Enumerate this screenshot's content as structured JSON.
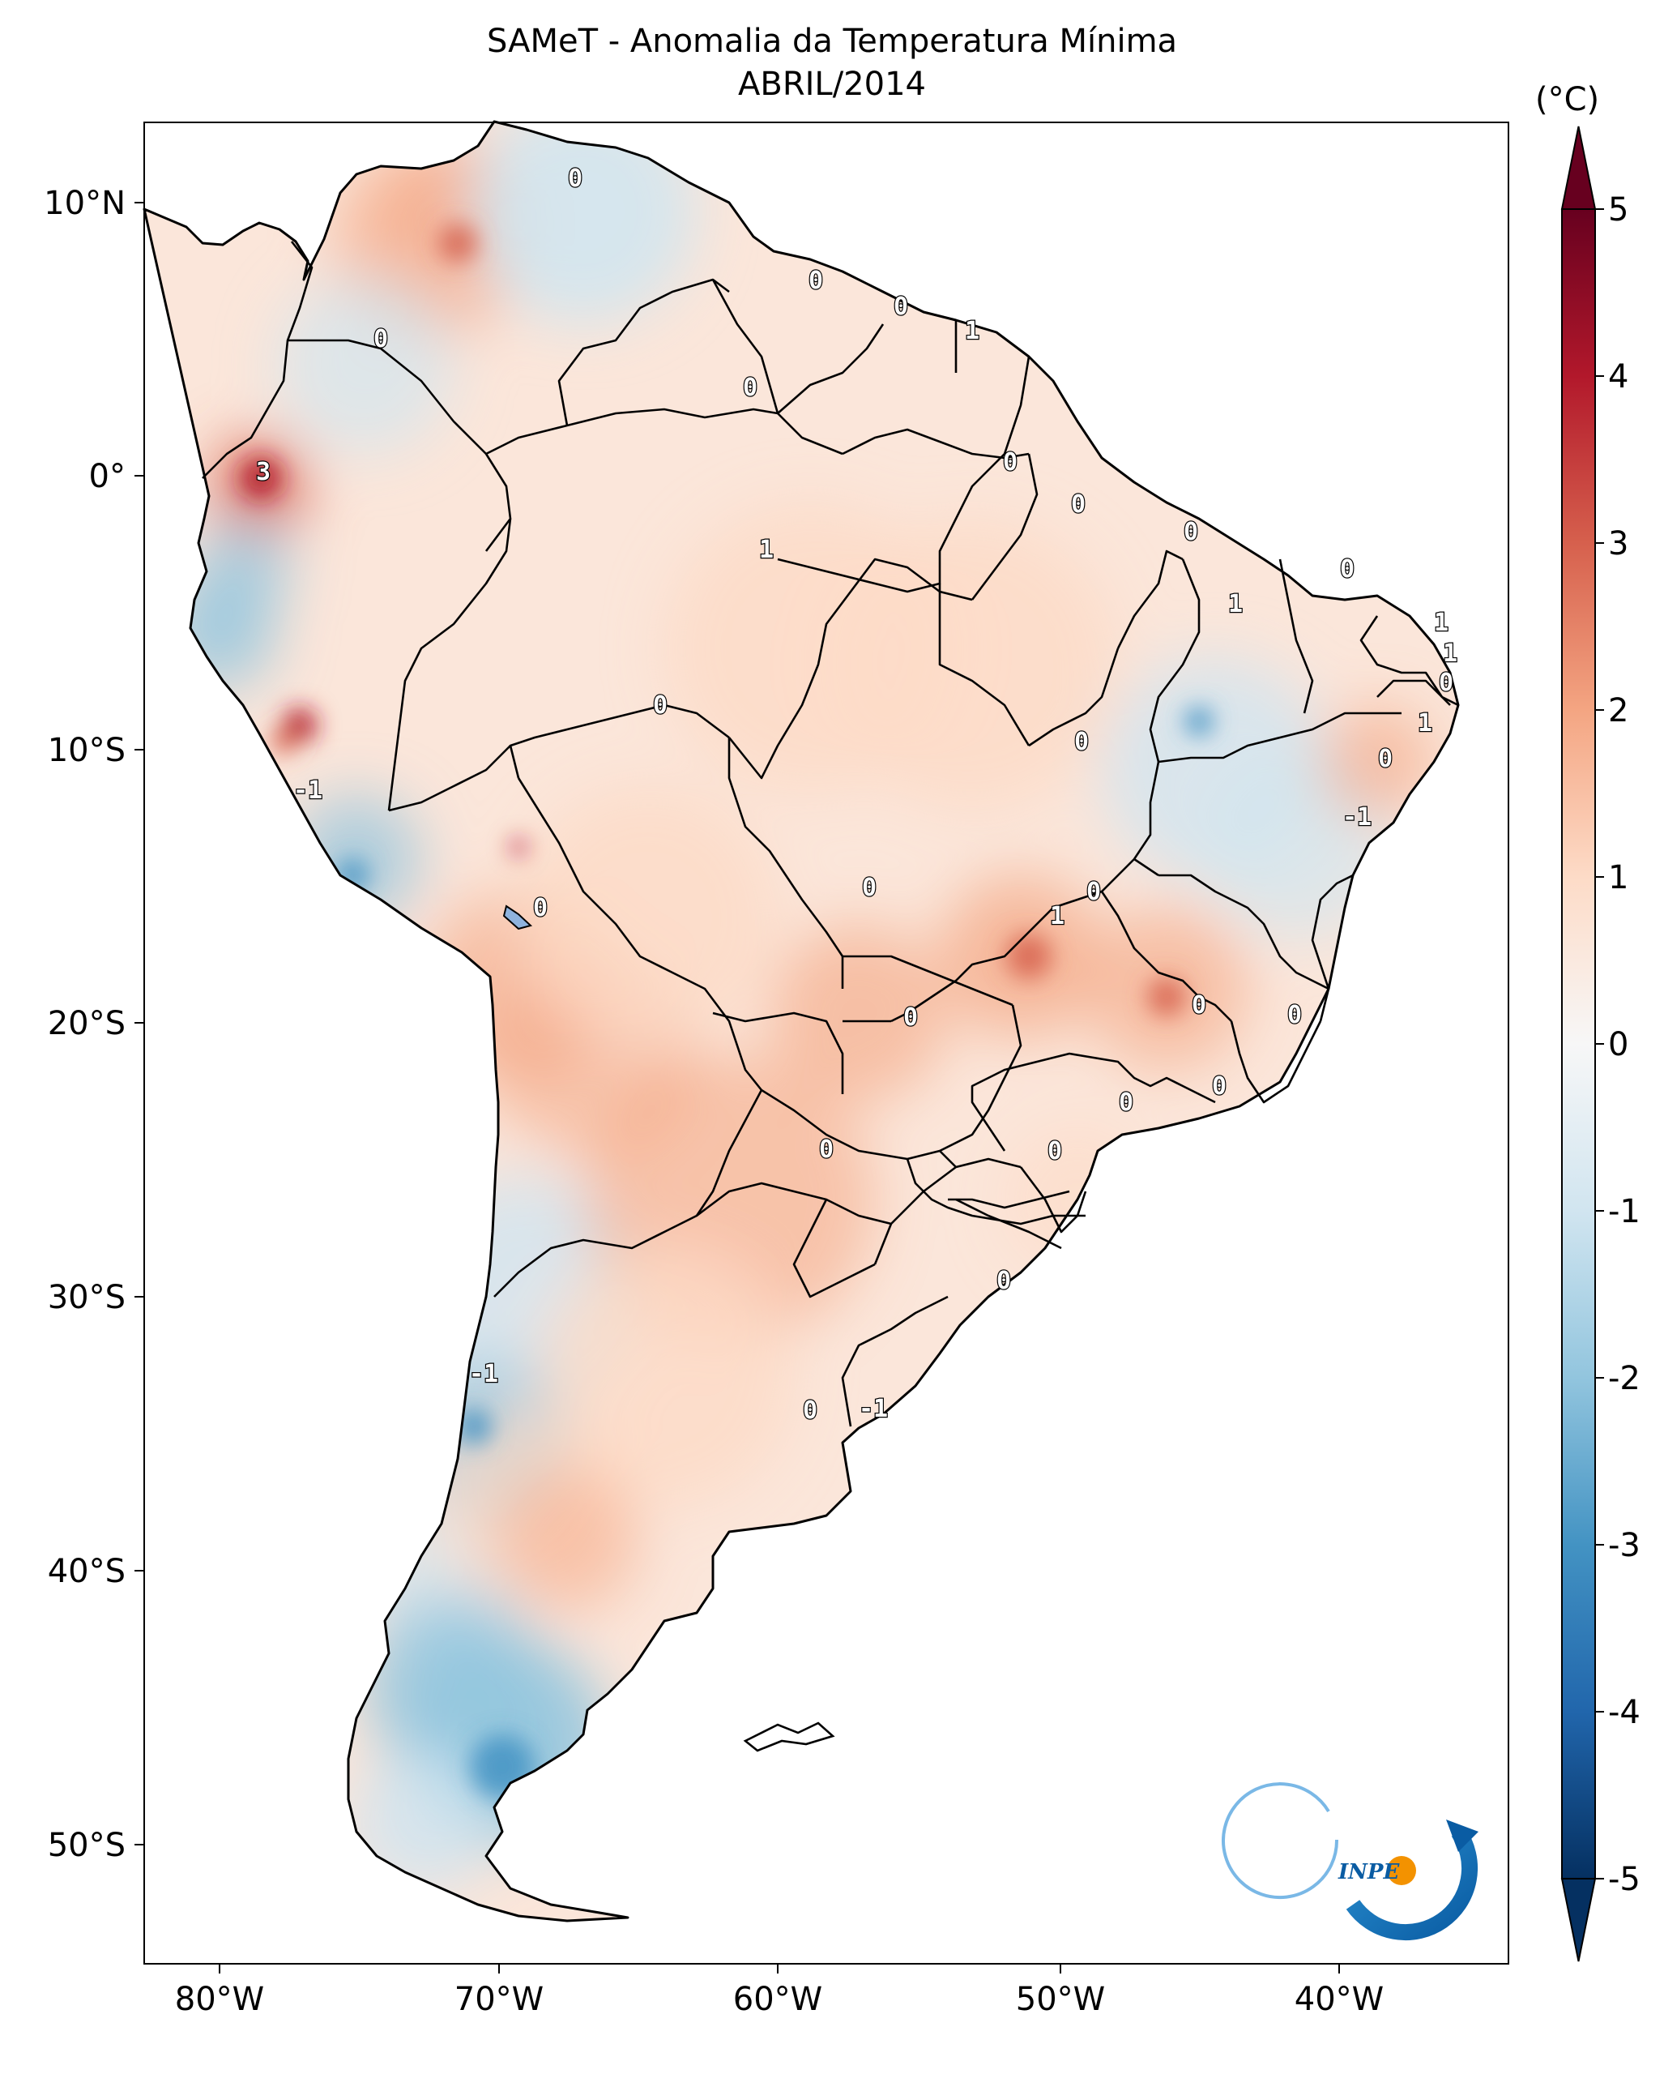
{
  "title": "SAMeT - Anomalia da Temperatura Mínima",
  "subtitle": "ABRIL/2014",
  "colorbar": {
    "unit": "(°C)",
    "ticks": [
      "5",
      "4",
      "3",
      "2",
      "1",
      "0",
      "-1",
      "-2",
      "-3",
      "-4",
      "-5"
    ],
    "range": [
      -5,
      5
    ],
    "colormap": "RdBu_r",
    "extend": "both"
  },
  "axes": {
    "lon_labels": [
      "80°W",
      "70°W",
      "60°W",
      "50°W",
      "40°W"
    ],
    "lat_labels": [
      "10°N",
      "0°",
      "10°S",
      "20°S",
      "30°S",
      "40°S",
      "50°S"
    ],
    "lon_range": [
      -83,
      -33
    ],
    "lat_range": [
      -56,
      13
    ]
  },
  "contour_labels": [
    "0",
    "0",
    "0",
    "1",
    "0",
    "0",
    "3",
    "1",
    "0",
    "0",
    "0",
    "1",
    "0",
    "1",
    "1",
    "0",
    "1",
    "0",
    "-1",
    "0",
    "0",
    "-1",
    "0",
    "0",
    "1",
    "0",
    "0",
    "0",
    "0",
    "0",
    "0",
    "0",
    "0",
    "-1",
    "0",
    "-1",
    "0"
  ],
  "logo": {
    "text": "INPE"
  },
  "colors": {
    "warm": "#f4a582",
    "cool": "#92c5de",
    "neutral": "#f7f7f7",
    "outline": "#000000"
  }
}
